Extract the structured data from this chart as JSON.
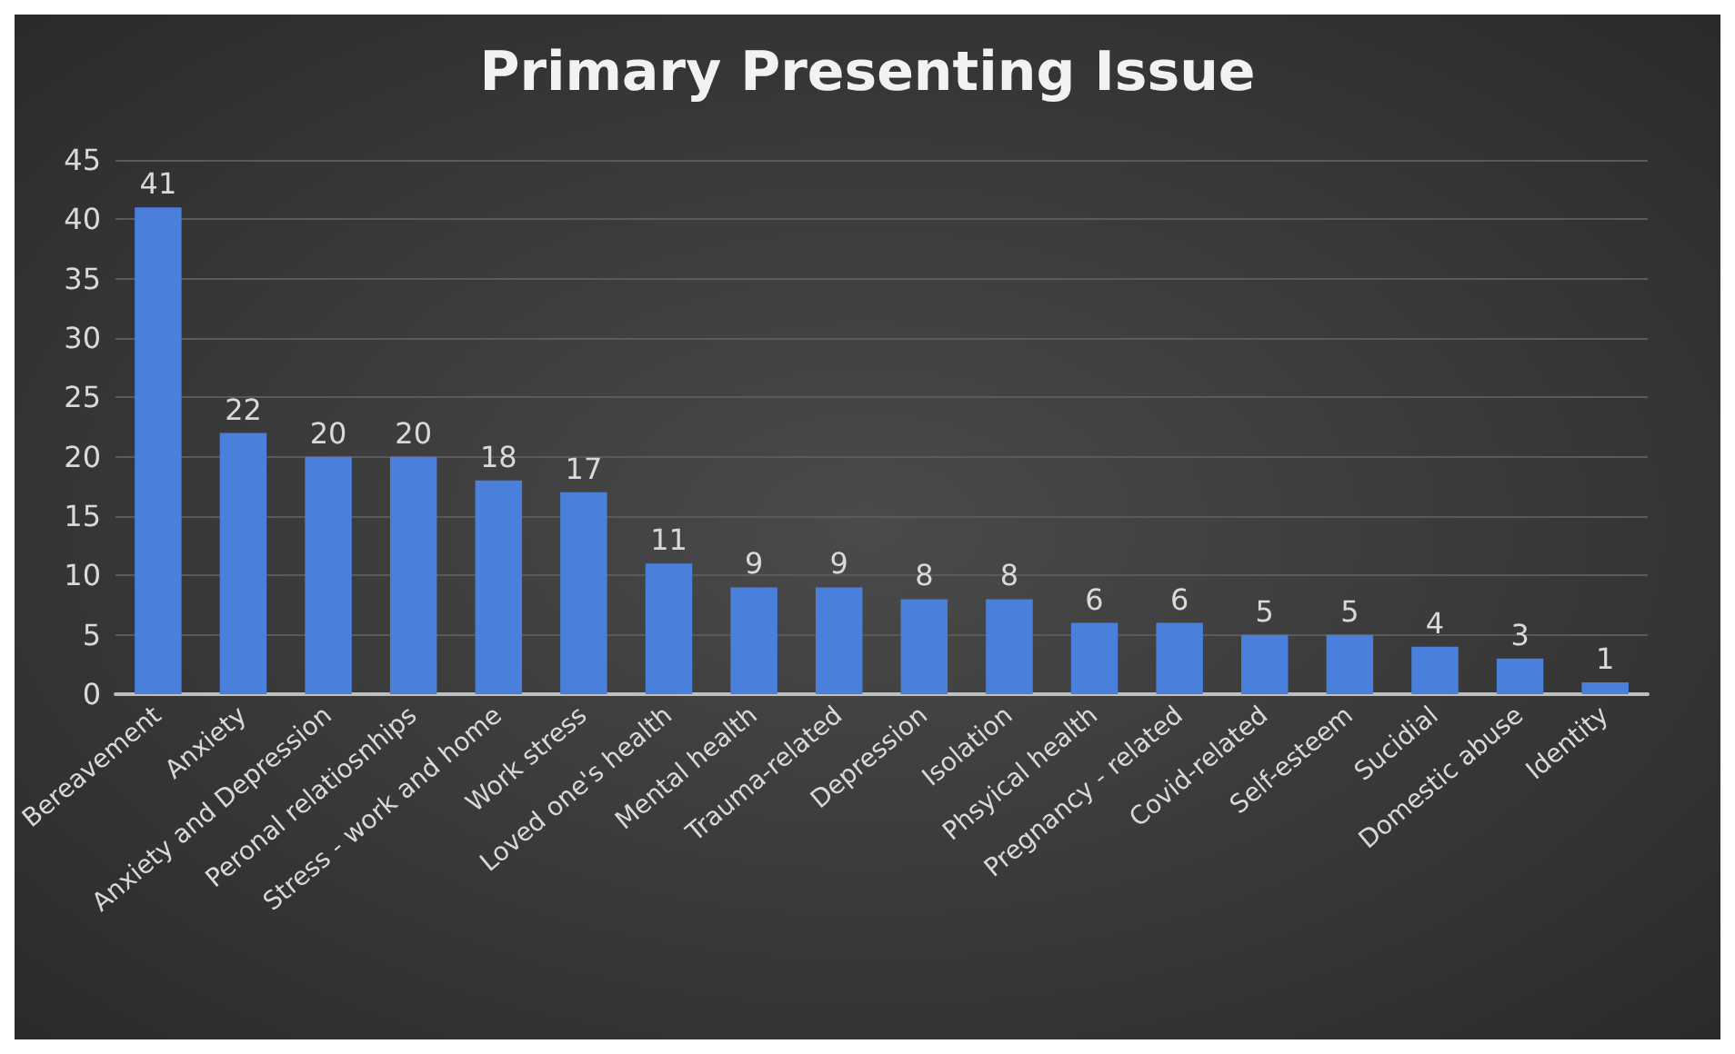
{
  "chart_data": {
    "type": "bar",
    "title": "Primary Presenting Issue",
    "categories": [
      "Bereavement",
      "Anxiety",
      "Anxiety and Depression",
      "Peronal relatiosnhips",
      "Stress - work and home",
      "Work stress",
      "Loved one's health",
      "Mental health",
      "Trauma-related",
      "Depression",
      "Isolation",
      "Phsyical health",
      "Pregnancy - related",
      "Covid-related",
      "Self-esteem",
      "Sucidial",
      "Domestic abuse",
      "Identity"
    ],
    "values": [
      41,
      22,
      20,
      20,
      18,
      17,
      11,
      9,
      9,
      8,
      8,
      6,
      6,
      5,
      5,
      4,
      3,
      1
    ],
    "color": "#4a7fdc",
    "ylim": [
      0,
      45
    ],
    "yticks": [
      0,
      5,
      10,
      15,
      20,
      25,
      30,
      35,
      40,
      45
    ],
    "grid": "y",
    "data_labels": true
  }
}
